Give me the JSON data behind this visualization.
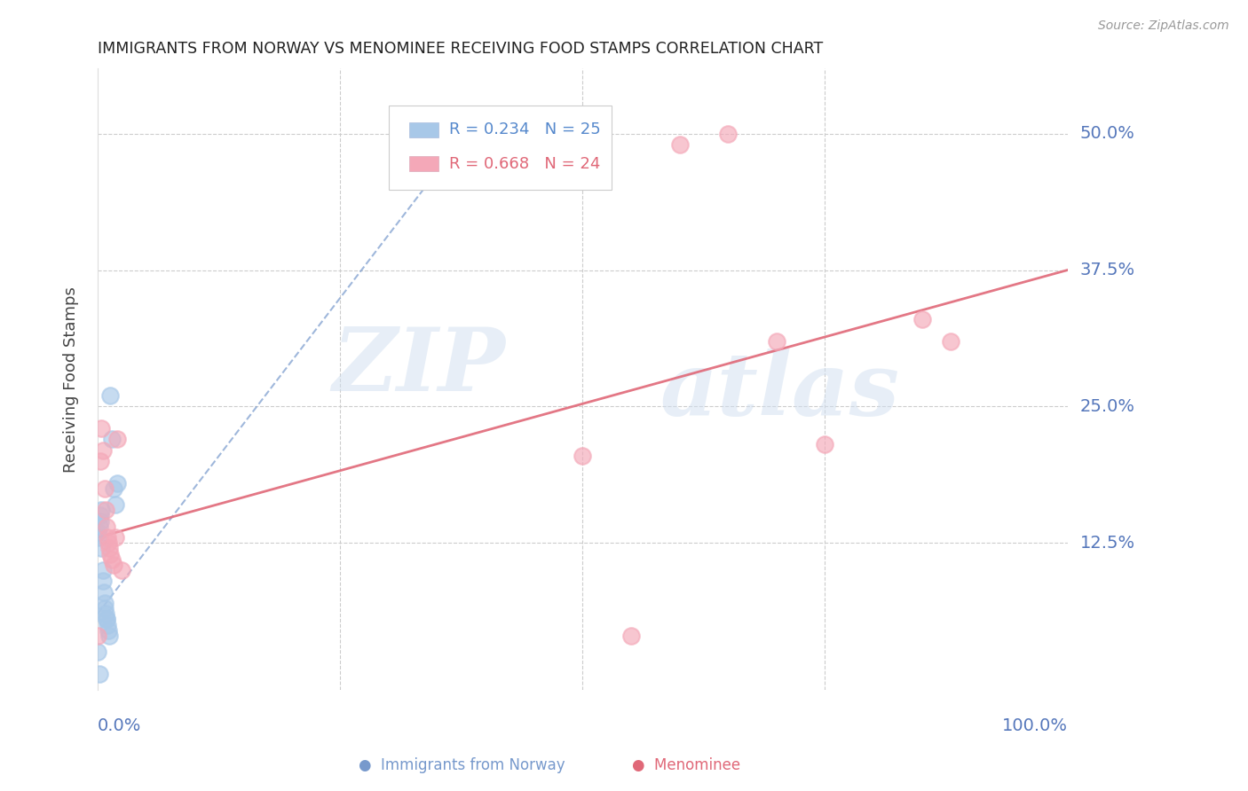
{
  "title": "IMMIGRANTS FROM NORWAY VS MENOMINEE RECEIVING FOOD STAMPS CORRELATION CHART",
  "source": "Source: ZipAtlas.com",
  "ylabel": "Receiving Food Stamps",
  "ytick_labels": [
    "12.5%",
    "25.0%",
    "37.5%",
    "50.0%"
  ],
  "ytick_values": [
    0.125,
    0.25,
    0.375,
    0.5
  ],
  "xlim": [
    0.0,
    1.0
  ],
  "ylim": [
    -0.01,
    0.56
  ],
  "norway_R": 0.234,
  "norway_N": 25,
  "menominee_R": 0.668,
  "menominee_N": 24,
  "norway_color": "#a8c8e8",
  "menominee_color": "#f4a8b8",
  "norway_line_color": "#7799cc",
  "menominee_line_color": "#e06878",
  "watermark_zip": "ZIP",
  "watermark_atlas": "atlas",
  "norway_x": [
    0.0,
    0.0,
    0.0,
    0.002,
    0.002,
    0.003,
    0.003,
    0.004,
    0.004,
    0.005,
    0.005,
    0.006,
    0.007,
    0.007,
    0.008,
    0.009,
    0.009,
    0.01,
    0.011,
    0.012,
    0.013,
    0.015,
    0.016,
    0.018,
    0.02
  ],
  "norway_y": [
    0.025,
    0.13,
    0.135,
    0.14,
    0.005,
    0.145,
    0.15,
    0.155,
    0.12,
    0.1,
    0.09,
    0.08,
    0.07,
    0.065,
    0.06,
    0.055,
    0.055,
    0.05,
    0.045,
    0.04,
    0.26,
    0.22,
    0.175,
    0.16,
    0.18
  ],
  "menominee_x": [
    0.0,
    0.003,
    0.004,
    0.005,
    0.007,
    0.008,
    0.009,
    0.01,
    0.011,
    0.012,
    0.013,
    0.015,
    0.016,
    0.018,
    0.02,
    0.025,
    0.55,
    0.6,
    0.65,
    0.7,
    0.75,
    0.85,
    0.88,
    0.5
  ],
  "menominee_y": [
    0.04,
    0.2,
    0.23,
    0.21,
    0.175,
    0.155,
    0.14,
    0.13,
    0.125,
    0.12,
    0.115,
    0.11,
    0.105,
    0.13,
    0.22,
    0.1,
    0.04,
    0.49,
    0.5,
    0.31,
    0.215,
    0.33,
    0.31,
    0.205
  ],
  "norway_trend_x": [
    0.0,
    0.38
  ],
  "norway_trend_y": [
    0.06,
    0.5
  ],
  "menominee_trend_x": [
    0.0,
    1.0
  ],
  "menominee_trend_y": [
    0.13,
    0.375
  ]
}
